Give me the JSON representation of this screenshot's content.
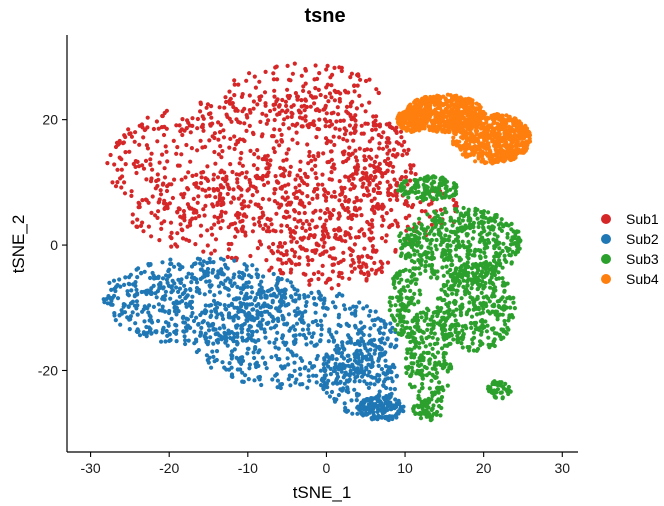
{
  "chart_data": {
    "type": "scatter",
    "title": "tsne",
    "xlabel": "tSNE_1",
    "ylabel": "tSNE_2",
    "xlim": [
      -33,
      32
    ],
    "ylim": [
      -33,
      33.5
    ],
    "x_ticks": [
      -30,
      -20,
      -10,
      0,
      10,
      20,
      30
    ],
    "y_ticks": [
      -20,
      0,
      20
    ],
    "grid": false,
    "legend_position": "right",
    "series": [
      {
        "name": "Sub1",
        "color": "#D62728",
        "regions": [
          {
            "cx": -8,
            "cy": 13,
            "rx": 20,
            "ry": 11,
            "weight": 0.45
          },
          {
            "cx": -4,
            "cy": 5,
            "rx": 21,
            "ry": 8,
            "weight": 0.3
          },
          {
            "cx": 0,
            "cy": -2,
            "rx": 8,
            "ry": 5,
            "weight": 0.1
          },
          {
            "cx": -3,
            "cy": 24,
            "rx": 10,
            "ry": 5,
            "weight": 0.1
          },
          {
            "cx": 6,
            "cy": 14,
            "rx": 4,
            "ry": 6,
            "weight": 0.05
          }
        ]
      },
      {
        "name": "Sub2",
        "color": "#1F77B4",
        "regions": [
          {
            "cx": -16,
            "cy": -9,
            "rx": 13,
            "ry": 7,
            "weight": 0.4
          },
          {
            "cx": -4,
            "cy": -15,
            "rx": 13,
            "ry": 8,
            "weight": 0.35
          },
          {
            "cx": 4,
            "cy": -21,
            "rx": 5,
            "ry": 6,
            "weight": 0.15
          },
          {
            "cx": 7,
            "cy": -26,
            "rx": 3,
            "ry": 2,
            "weight": 0.1
          }
        ]
      },
      {
        "name": "Sub3",
        "color": "#2CA02C",
        "regions": [
          {
            "cx": 17,
            "cy": 0,
            "rx": 8,
            "ry": 6,
            "weight": 0.35
          },
          {
            "cx": 19,
            "cy": -10,
            "rx": 5,
            "ry": 7,
            "weight": 0.25
          },
          {
            "cx": 13,
            "cy": -18,
            "rx": 3,
            "ry": 8,
            "weight": 0.15
          },
          {
            "cx": 13,
            "cy": 9,
            "rx": 4,
            "ry": 2,
            "weight": 0.1
          },
          {
            "cx": 10,
            "cy": -9,
            "rx": 2,
            "ry": 6,
            "weight": 0.08
          },
          {
            "cx": 22,
            "cy": -23,
            "rx": 1.5,
            "ry": 1.5,
            "weight": 0.03
          },
          {
            "cx": 13,
            "cy": -26,
            "rx": 2,
            "ry": 2,
            "weight": 0.04
          }
        ]
      },
      {
        "name": "Sub4",
        "color": "#FF7F0E",
        "regions": [
          {
            "cx": 15,
            "cy": 21,
            "rx": 5,
            "ry": 3,
            "weight": 0.4
          },
          {
            "cx": 21,
            "cy": 17,
            "rx": 5,
            "ry": 4,
            "weight": 0.45
          },
          {
            "cx": 11,
            "cy": 20,
            "rx": 2,
            "ry": 2,
            "weight": 0.15
          }
        ]
      }
    ]
  }
}
